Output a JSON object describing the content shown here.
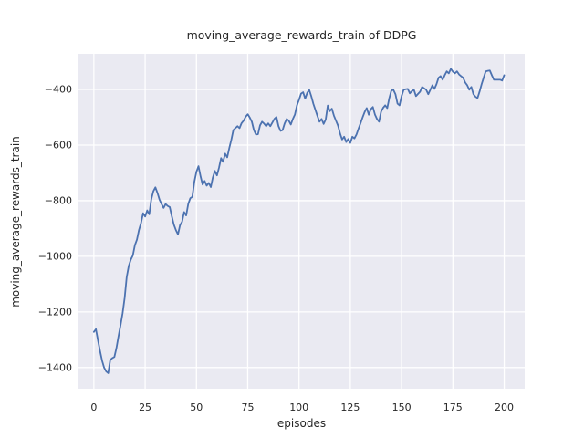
{
  "figure": {
    "title": "moving_average_rewards_train of DDPG",
    "xlabel": "episodes",
    "ylabel": "moving_average_rewards_train"
  },
  "colors": {
    "figure_background": "#FFFFFF",
    "axes_background": "#EAEAF2",
    "grid": "#FFFFFF",
    "line": "#4C72B0",
    "text": "#262626"
  },
  "chart_data": {
    "type": "line",
    "title": "moving_average_rewards_train of DDPG",
    "xlabel": "episodes",
    "ylabel": "moving_average_rewards_train",
    "xlim": [
      -7.5,
      210
    ],
    "ylim": [
      -1476,
      -272
    ],
    "grid": true,
    "legend": false,
    "xticks": {
      "values": [
        0,
        25,
        50,
        75,
        100,
        125,
        150,
        175,
        200
      ],
      "labels": [
        "0",
        "25",
        "50",
        "75",
        "100",
        "125",
        "150",
        "175",
        "200"
      ]
    },
    "yticks": {
      "values": [
        -400,
        -600,
        -800,
        -1000,
        -1200,
        -1400
      ],
      "labels": [
        "−400",
        "−600",
        "−800",
        "−1000",
        "−1200",
        "−1400"
      ]
    },
    "series": [
      {
        "name": "moving_average_rewards_train",
        "x": [
          0,
          1,
          2,
          3,
          4,
          5,
          6,
          7,
          8,
          9,
          10,
          11,
          12,
          13,
          14,
          15,
          16,
          17,
          18,
          19,
          20,
          21,
          22,
          23,
          24,
          25,
          26,
          27,
          28,
          29,
          30,
          31,
          32,
          33,
          34,
          35,
          36,
          37,
          38,
          39,
          40,
          41,
          42,
          43,
          44,
          45,
          46,
          47,
          48,
          49,
          50,
          51,
          52,
          53,
          54,
          55,
          56,
          57,
          58,
          59,
          60,
          61,
          62,
          63,
          64,
          65,
          66,
          67,
          68,
          69,
          70,
          71,
          72,
          73,
          74,
          75,
          76,
          77,
          78,
          79,
          80,
          81,
          82,
          83,
          84,
          85,
          86,
          87,
          88,
          89,
          90,
          91,
          92,
          93,
          94,
          95,
          96,
          97,
          98,
          99,
          100,
          101,
          102,
          103,
          104,
          105,
          106,
          107,
          108,
          109,
          110,
          111,
          112,
          113,
          114,
          115,
          116,
          117,
          118,
          119,
          120,
          121,
          122,
          123,
          124,
          125,
          126,
          127,
          128,
          129,
          130,
          131,
          132,
          133,
          134,
          135,
          136,
          137,
          138,
          139,
          140,
          141,
          142,
          143,
          144,
          145,
          146,
          147,
          148,
          149,
          150,
          151,
          152,
          153,
          154,
          155,
          156,
          157,
          158,
          159,
          160,
          161,
          162,
          163,
          164,
          165,
          166,
          167,
          168,
          169,
          170,
          171,
          172,
          173,
          174,
          175,
          176,
          177,
          178,
          179,
          180,
          181,
          182,
          183,
          184,
          185,
          186,
          187,
          188,
          189,
          190,
          191,
          192,
          193,
          194,
          195,
          196,
          197,
          198,
          199,
          200
        ],
        "y": [
          -1272,
          -1262,
          -1302,
          -1340,
          -1375,
          -1400,
          -1414,
          -1420,
          -1372,
          -1366,
          -1362,
          -1330,
          -1288,
          -1248,
          -1205,
          -1150,
          -1075,
          -1035,
          -1012,
          -997,
          -960,
          -940,
          -905,
          -880,
          -845,
          -857,
          -835,
          -849,
          -795,
          -766,
          -752,
          -772,
          -796,
          -812,
          -826,
          -812,
          -819,
          -823,
          -856,
          -886,
          -906,
          -921,
          -888,
          -876,
          -841,
          -853,
          -812,
          -791,
          -786,
          -731,
          -696,
          -676,
          -712,
          -742,
          -729,
          -746,
          -736,
          -751,
          -716,
          -693,
          -709,
          -681,
          -647,
          -660,
          -631,
          -644,
          -611,
          -581,
          -546,
          -539,
          -532,
          -539,
          -521,
          -512,
          -498,
          -489,
          -501,
          -516,
          -546,
          -562,
          -561,
          -529,
          -516,
          -523,
          -532,
          -522,
          -532,
          -519,
          -506,
          -499,
          -532,
          -549,
          -546,
          -522,
          -506,
          -512,
          -526,
          -506,
          -490,
          -457,
          -437,
          -415,
          -410,
          -433,
          -412,
          -402,
          -425,
          -452,
          -474,
          -496,
          -516,
          -506,
          -524,
          -508,
          -458,
          -478,
          -469,
          -494,
          -512,
          -530,
          -558,
          -580,
          -570,
          -589,
          -578,
          -592,
          -570,
          -576,
          -562,
          -541,
          -521,
          -500,
          -481,
          -467,
          -491,
          -471,
          -463,
          -490,
          -506,
          -516,
          -480,
          -466,
          -457,
          -467,
          -431,
          -404,
          -401,
          -417,
          -451,
          -457,
          -424,
          -401,
          -399,
          -398,
          -414,
          -406,
          -401,
          -424,
          -416,
          -408,
          -391,
          -396,
          -401,
          -417,
          -401,
          -385,
          -398,
          -381,
          -358,
          -352,
          -365,
          -349,
          -335,
          -342,
          -326,
          -336,
          -342,
          -335,
          -346,
          -352,
          -358,
          -375,
          -385,
          -401,
          -391,
          -417,
          -426,
          -431,
          -408,
          -381,
          -358,
          -335,
          -333,
          -332,
          -349,
          -365,
          -365,
          -365,
          -365,
          -368,
          -349
        ]
      }
    ]
  }
}
